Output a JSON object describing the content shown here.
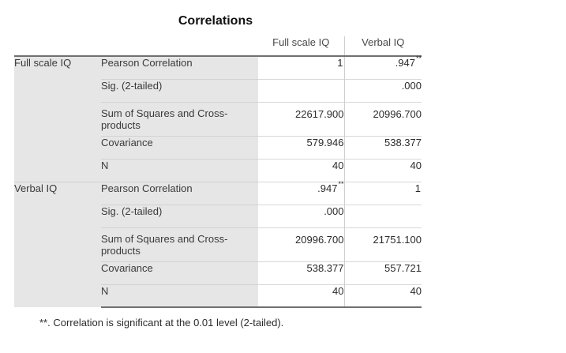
{
  "title": "Correlations",
  "columns": [
    "Full scale IQ",
    "Verbal IQ"
  ],
  "groups": [
    {
      "label": "Full scale IQ",
      "rows": [
        {
          "stat": "Pearson Correlation",
          "v1": "1",
          "v1_sup": "",
          "v2": ".947",
          "v2_sup": "**"
        },
        {
          "stat": "Sig. (2-tailed)",
          "v1": "",
          "v1_sup": "",
          "v2": ".000",
          "v2_sup": ""
        },
        {
          "stat": "Sum of Squares and Cross-products",
          "v1": "22617.900",
          "v1_sup": "",
          "v2": "20996.700",
          "v2_sup": ""
        },
        {
          "stat": "Covariance",
          "v1": "579.946",
          "v1_sup": "",
          "v2": "538.377",
          "v2_sup": ""
        },
        {
          "stat": "N",
          "v1": "40",
          "v1_sup": "",
          "v2": "40",
          "v2_sup": ""
        }
      ]
    },
    {
      "label": "Verbal IQ",
      "rows": [
        {
          "stat": "Pearson Correlation",
          "v1": ".947",
          "v1_sup": "**",
          "v2": "1",
          "v2_sup": ""
        },
        {
          "stat": "Sig. (2-tailed)",
          "v1": ".000",
          "v1_sup": "",
          "v2": "",
          "v2_sup": ""
        },
        {
          "stat": "Sum of Squares and Cross-products",
          "v1": "20996.700",
          "v1_sup": "",
          "v2": "21751.100",
          "v2_sup": ""
        },
        {
          "stat": "Covariance",
          "v1": "538.377",
          "v1_sup": "",
          "v2": "557.721",
          "v2_sup": ""
        },
        {
          "stat": "N",
          "v1": "40",
          "v1_sup": "",
          "v2": "40",
          "v2_sup": ""
        }
      ]
    }
  ],
  "footnote": "**. Correlation is significant at the 0.01 level (2-tailed)."
}
